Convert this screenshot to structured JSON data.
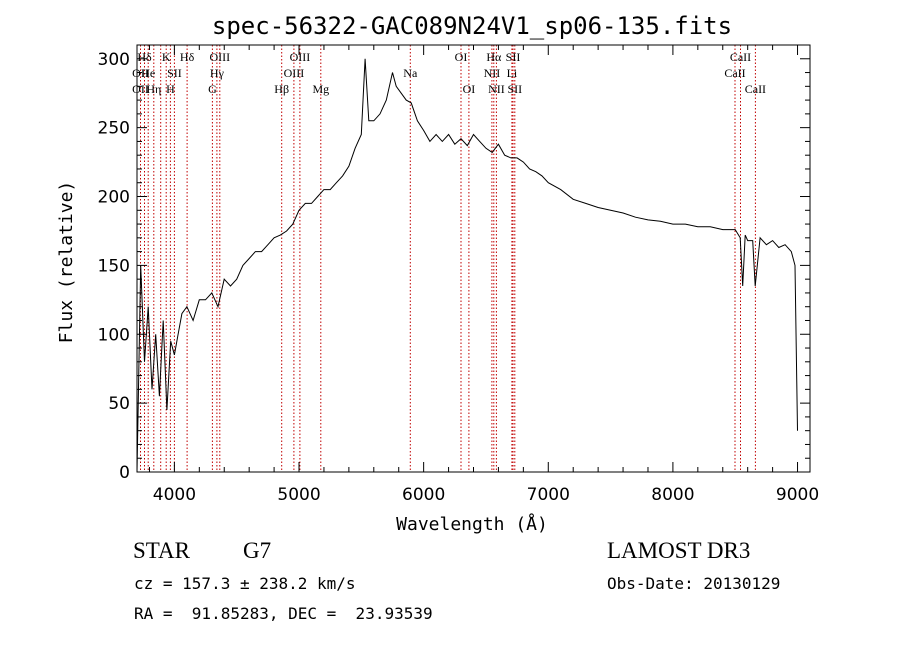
{
  "chart_data": {
    "type": "line",
    "title": "spec-56322-GAC089N24V1_sp06-135.fits",
    "xlabel": "Wavelength (Å)",
    "ylabel": "Flux (relative)",
    "xlim": [
      3700,
      9100
    ],
    "ylim": [
      0,
      310
    ],
    "xticks": [
      4000,
      5000,
      6000,
      7000,
      8000,
      9000
    ],
    "xtick_labels": [
      "4000",
      "5000",
      "6000",
      "7000",
      "8000",
      "9000"
    ],
    "yticks": [
      0,
      50,
      100,
      150,
      200,
      250,
      300
    ],
    "ytick_labels": [
      "0",
      "50",
      "100",
      "150",
      "200",
      "250",
      "300"
    ],
    "grid": false,
    "series": [
      {
        "name": "flux",
        "x": [
          3700,
          3730,
          3760,
          3790,
          3820,
          3850,
          3880,
          3910,
          3940,
          3970,
          4000,
          4030,
          4060,
          4100,
          4150,
          4200,
          4250,
          4300,
          4350,
          4400,
          4450,
          4500,
          4550,
          4600,
          4650,
          4700,
          4750,
          4800,
          4850,
          4900,
          4950,
          5000,
          5050,
          5100,
          5150,
          5200,
          5250,
          5300,
          5350,
          5400,
          5450,
          5500,
          5530,
          5560,
          5600,
          5650,
          5700,
          5750,
          5780,
          5820,
          5860,
          5900,
          5950,
          6000,
          6050,
          6100,
          6150,
          6200,
          6250,
          6300,
          6350,
          6400,
          6450,
          6500,
          6550,
          6600,
          6650,
          6700,
          6750,
          6800,
          6850,
          6900,
          6950,
          7000,
          7100,
          7200,
          7300,
          7400,
          7500,
          7600,
          7700,
          7800,
          7900,
          8000,
          8100,
          8200,
          8300,
          8400,
          8500,
          8540,
          8560,
          8580,
          8600,
          8640,
          8660,
          8700,
          8750,
          8800,
          8850,
          8900,
          8950,
          8980,
          9000
        ],
        "y": [
          0,
          150,
          80,
          120,
          60,
          100,
          55,
          110,
          45,
          95,
          85,
          100,
          115,
          120,
          110,
          125,
          125,
          130,
          120,
          140,
          135,
          140,
          150,
          155,
          160,
          160,
          165,
          170,
          172,
          175,
          180,
          190,
          195,
          195,
          200,
          205,
          205,
          210,
          215,
          222,
          235,
          245,
          300,
          255,
          255,
          260,
          270,
          290,
          280,
          275,
          270,
          268,
          255,
          248,
          240,
          245,
          240,
          245,
          238,
          242,
          237,
          245,
          240,
          235,
          232,
          238,
          230,
          228,
          228,
          225,
          220,
          218,
          215,
          210,
          205,
          198,
          195,
          192,
          190,
          188,
          185,
          183,
          182,
          180,
          180,
          178,
          178,
          176,
          176,
          170,
          135,
          172,
          168,
          168,
          135,
          170,
          165,
          168,
          163,
          165,
          160,
          150,
          30
        ]
      }
    ],
    "line_labels": [
      {
        "label": "Hδ",
        "x": 3760,
        "row": 0
      },
      {
        "label": "OII",
        "x": 3728,
        "row": 1
      },
      {
        "label": "He",
        "x": 3790,
        "row": 1
      },
      {
        "label": "OII",
        "x": 3728,
        "row": 2
      },
      {
        "label": "Hη",
        "x": 3835,
        "row": 2
      },
      {
        "label": "K",
        "x": 3934,
        "row": 0
      },
      {
        "label": "SII",
        "x": 4000,
        "row": 1
      },
      {
        "label": "H",
        "x": 3968,
        "row": 2
      },
      {
        "label": "Hδ",
        "x": 4102,
        "row": 0
      },
      {
        "label": "OIII",
        "x": 4364,
        "row": 0
      },
      {
        "label": "Hγ",
        "x": 4341,
        "row": 1
      },
      {
        "label": "G",
        "x": 4305,
        "row": 2
      },
      {
        "label": "Hβ",
        "x": 4861,
        "row": 2
      },
      {
        "label": "OIII",
        "x": 5007,
        "row": 0
      },
      {
        "label": "OIII",
        "x": 4959,
        "row": 1
      },
      {
        "label": "Mg",
        "x": 5175,
        "row": 2
      },
      {
        "label": "Na",
        "x": 5893,
        "row": 1
      },
      {
        "label": "OI",
        "x": 6300,
        "row": 0
      },
      {
        "label": "OI",
        "x": 6363,
        "row": 2
      },
      {
        "label": "Hα",
        "x": 6563,
        "row": 0
      },
      {
        "label": "NII",
        "x": 6548,
        "row": 1
      },
      {
        "label": "NII",
        "x": 6584,
        "row": 2
      },
      {
        "label": "SII",
        "x": 6717,
        "row": 0
      },
      {
        "label": "Li",
        "x": 6708,
        "row": 1
      },
      {
        "label": "SII",
        "x": 6731,
        "row": 2
      },
      {
        "label": "CaII",
        "x": 8542,
        "row": 0
      },
      {
        "label": "CaII",
        "x": 8498,
        "row": 1
      },
      {
        "label": "CaII",
        "x": 8662,
        "row": 2
      }
    ],
    "line_markers": [
      3728,
      3760,
      3790,
      3835,
      3890,
      3934,
      3968,
      4000,
      4102,
      4305,
      4341,
      4364,
      4861,
      4959,
      5007,
      5175,
      5893,
      6300,
      6363,
      6548,
      6563,
      6584,
      6708,
      6717,
      6731,
      8498,
      8542,
      8662
    ]
  },
  "info": {
    "object_class": "STAR",
    "subclass": "G7",
    "survey": "LAMOST DR3",
    "redshift": "cz = 157.3 ± 238.2 km/s",
    "obs_date": "Obs-Date: 20130129",
    "coords": "RA =  91.85283, DEC =  23.93539"
  },
  "colors": {
    "axes": "#000000",
    "line_marker": "#c00000",
    "spectrum": "#000000"
  }
}
